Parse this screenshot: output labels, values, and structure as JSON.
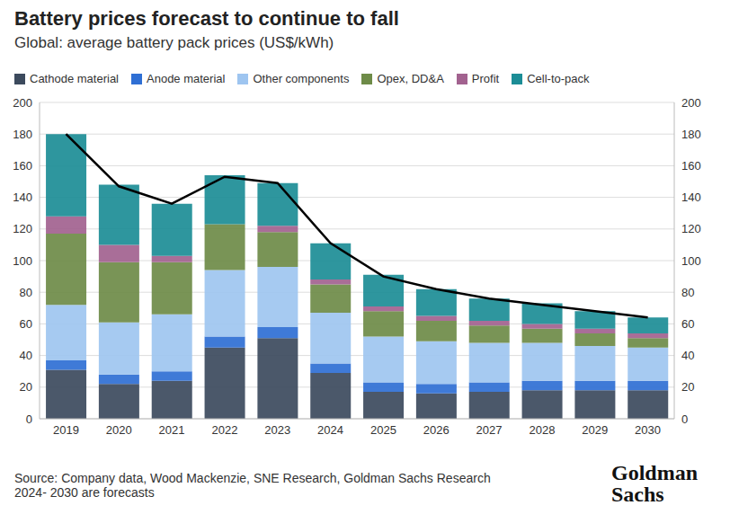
{
  "chart_data": {
    "type": "bar",
    "title": "Battery prices forecast to continue to fall",
    "subtitle": "Global: average battery pack prices (US$/kWh)",
    "stacked": true,
    "grid": true,
    "legend": "top",
    "categories": [
      "2019",
      "2020",
      "2021",
      "2022",
      "2023",
      "2024",
      "2025",
      "2026",
      "2027",
      "2028",
      "2029",
      "2030"
    ],
    "ylim": [
      0,
      200
    ],
    "yticks": [
      0,
      20,
      40,
      60,
      80,
      100,
      120,
      140,
      160,
      180,
      200
    ],
    "y2lim": [
      0,
      200
    ],
    "y2ticks": [
      0,
      20,
      40,
      60,
      80,
      100,
      120,
      140,
      160,
      180,
      200
    ],
    "series": [
      {
        "name": "Cathode material",
        "color": "#3c4a5d",
        "values": [
          31,
          22,
          24,
          45,
          51,
          29,
          17,
          16,
          17,
          18,
          18,
          18
        ]
      },
      {
        "name": "Anode material",
        "color": "#2f6fd4",
        "values": [
          6,
          6,
          6,
          7,
          7,
          6,
          6,
          6,
          6,
          6,
          6,
          6
        ]
      },
      {
        "name": "Other components",
        "color": "#9ec5f0",
        "values": [
          35,
          33,
          36,
          42,
          38,
          32,
          29,
          27,
          25,
          24,
          22,
          21
        ]
      },
      {
        "name": "Opex, DD&A",
        "color": "#6e8b48",
        "values": [
          45,
          38,
          33,
          29,
          22,
          18,
          16,
          13,
          11,
          9,
          8,
          6
        ]
      },
      {
        "name": "Profit",
        "color": "#a2628f",
        "values": [
          11,
          11,
          4,
          0,
          4,
          3,
          3,
          3,
          3,
          3,
          3,
          3
        ]
      },
      {
        "name": "Cell-to-pack",
        "color": "#1c8d96",
        "values": [
          52,
          38,
          33,
          31,
          27,
          23,
          20,
          17,
          14,
          13,
          11,
          10
        ]
      },
      {
        "type": "line",
        "color": "#000000",
        "marker": "none",
        "line_style": "solid",
        "values": [
          180,
          147,
          136,
          153,
          149,
          111,
          90,
          82,
          76,
          72,
          68,
          64
        ]
      }
    ],
    "source": "Source: Company data, Wood Mackenzie, SNE Research, Goldman Sachs Research",
    "note": "2024- 2030 are forecasts",
    "logo": [
      "Goldman",
      "Sachs"
    ]
  }
}
